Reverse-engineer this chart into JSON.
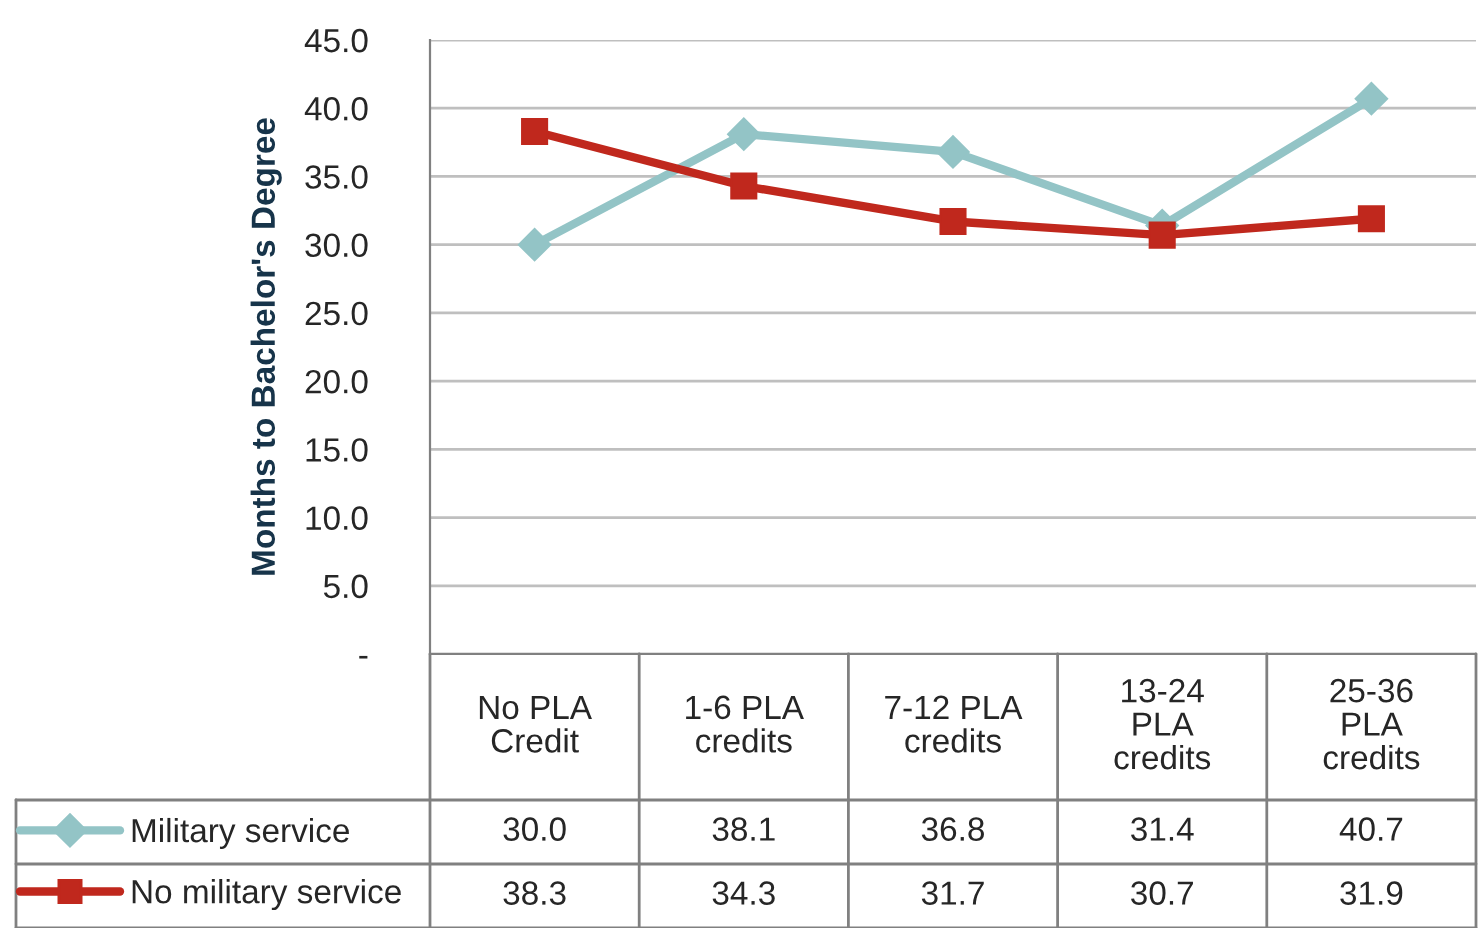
{
  "chart_data": {
    "type": "line",
    "ylabel": "Months to Bachelor's Degree",
    "categories": [
      "No PLA\nCredit",
      "1-6 PLA\ncredits",
      "7-12 PLA\ncredits",
      "13-24\nPLA\ncredits",
      "25-36\nPLA\ncredits"
    ],
    "series": [
      {
        "name": "Military service",
        "color": "#93c4c6",
        "marker": "diamond",
        "values": [
          30.0,
          38.1,
          36.8,
          31.4,
          40.7
        ],
        "value_labels": [
          "30.0",
          "38.1",
          "36.8",
          "31.4",
          "40.7"
        ]
      },
      {
        "name": "No military service",
        "color": "#c0281d",
        "marker": "square",
        "values": [
          38.3,
          34.3,
          31.7,
          30.7,
          31.9
        ],
        "value_labels": [
          "38.3",
          "34.3",
          "31.7",
          "30.7",
          "31.9"
        ]
      }
    ],
    "ylim": [
      0,
      45
    ],
    "yticks": [
      {
        "value": 0,
        "label": "-"
      },
      {
        "value": 5,
        "label": "5.0"
      },
      {
        "value": 10,
        "label": "10.0"
      },
      {
        "value": 15,
        "label": "15.0"
      },
      {
        "value": 20,
        "label": "20.0"
      },
      {
        "value": 25,
        "label": "25.0"
      },
      {
        "value": 30,
        "label": "30.0"
      },
      {
        "value": 35,
        "label": "35.0"
      },
      {
        "value": 40,
        "label": "40.0"
      },
      {
        "value": 45,
        "label": "45.0"
      }
    ],
    "grid": "y",
    "legend": "bottom"
  }
}
